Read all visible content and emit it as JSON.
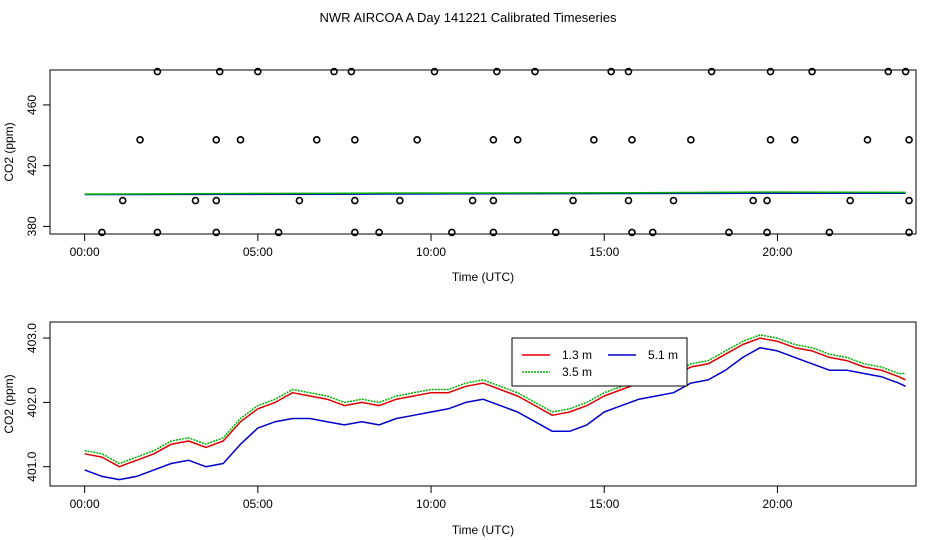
{
  "title": "NWR AIRCOA A  Day 141221  Calibrated Timeseries",
  "colors": {
    "s13": "#e00000",
    "s35": "#00b000",
    "s51": "#0000cc",
    "axis": "#000000"
  },
  "chart_data": [
    {
      "type": "scatter",
      "xlabel": "Time (UTC)",
      "ylabel": "CO2 (ppm)",
      "xlim": [
        -1.0,
        24.0
      ],
      "ylim": [
        375.0,
        483.0
      ],
      "x_ticks": [
        0,
        5,
        10,
        15,
        20
      ],
      "x_tick_labels": [
        "00:00",
        "05:00",
        "10:00",
        "15:00",
        "20:00"
      ],
      "y_ticks": [
        380,
        420,
        460
      ],
      "y_tick_labels": [
        "380",
        "420",
        "460"
      ],
      "series": [
        {
          "color": "#0000cc",
          "style": "line",
          "x": [
            0.0,
            4.0,
            8.0,
            12.0,
            16.0,
            20.0,
            23.7
          ],
          "y": [
            401.0,
            401.1,
            401.3,
            401.5,
            401.7,
            401.9,
            401.9
          ]
        },
        {
          "color": "#00b000",
          "style": "line",
          "x": [
            0.0,
            4.0,
            8.0,
            12.0,
            16.0,
            20.0,
            23.7
          ],
          "y": [
            401.3,
            401.6,
            401.9,
            402.0,
            402.2,
            402.6,
            402.4
          ]
        },
        {
          "color": "#000000",
          "style": "points",
          "x": [
            0.5,
            2.1,
            3.8,
            5.6,
            7.8,
            8.5,
            10.6,
            11.8,
            13.6,
            15.8,
            16.4,
            18.6,
            19.7,
            21.5,
            23.8
          ],
          "y": [
            376,
            376,
            376,
            376,
            376,
            376,
            376,
            376,
            376,
            376,
            376,
            376,
            376,
            376,
            376
          ]
        },
        {
          "color": "#000000",
          "style": "points",
          "x": [
            1.1,
            3.2,
            3.8,
            6.2,
            7.8,
            9.1,
            11.2,
            11.8,
            14.1,
            15.7,
            17.0,
            19.3,
            19.7,
            22.1,
            23.8
          ],
          "y": [
            397,
            397,
            397,
            397,
            397,
            397,
            397,
            397,
            397,
            397,
            397,
            397,
            397,
            397,
            397
          ]
        },
        {
          "color": "#000000",
          "style": "points",
          "x": [
            1.6,
            3.8,
            4.5,
            6.7,
            7.8,
            9.6,
            11.8,
            12.5,
            14.7,
            15.8,
            17.5,
            19.8,
            20.5,
            22.6,
            23.8
          ],
          "y": [
            437,
            437,
            437,
            437,
            437,
            437,
            437,
            437,
            437,
            437,
            437,
            437,
            437,
            437,
            437
          ]
        },
        {
          "color": "#000000",
          "style": "points",
          "x": [
            2.1,
            3.9,
            5.0,
            7.2,
            7.7,
            10.1,
            11.9,
            13.0,
            15.2,
            15.7,
            18.1,
            19.8,
            21.0,
            23.2,
            23.7
          ],
          "y": [
            482,
            482,
            482,
            482,
            482,
            482,
            482,
            482,
            482,
            482,
            482,
            482,
            482,
            482,
            482
          ]
        }
      ]
    },
    {
      "type": "line",
      "xlabel": "Time (UTC)",
      "ylabel": "CO2 (ppm)",
      "xlim": [
        -1.0,
        24.0
      ],
      "ylim": [
        400.7,
        403.25
      ],
      "x_ticks": [
        0,
        5,
        10,
        15,
        20
      ],
      "x_tick_labels": [
        "00:00",
        "05:00",
        "10:00",
        "15:00",
        "20:00"
      ],
      "y_ticks": [
        401.0,
        402.0,
        403.0
      ],
      "y_tick_labels": [
        "401.0",
        "402.0",
        "403.0"
      ],
      "legend": {
        "placement": "top-right"
      },
      "x": [
        0.0,
        0.5,
        1.0,
        1.5,
        2.0,
        2.5,
        3.0,
        3.5,
        4.0,
        4.5,
        5.0,
        5.5,
        6.0,
        6.5,
        7.0,
        7.5,
        8.0,
        8.5,
        9.0,
        9.5,
        10.0,
        10.5,
        11.0,
        11.5,
        12.0,
        12.5,
        13.0,
        13.5,
        14.0,
        14.5,
        15.0,
        15.5,
        16.0,
        16.5,
        17.0,
        17.5,
        18.0,
        18.5,
        19.0,
        19.5,
        20.0,
        20.5,
        21.0,
        21.5,
        22.0,
        22.5,
        23.0,
        23.5,
        23.7
      ],
      "series": [
        {
          "name": "1.3 m",
          "color": "#e00000",
          "values": [
            401.2,
            401.15,
            401.0,
            401.1,
            401.2,
            401.35,
            401.4,
            401.3,
            401.4,
            401.7,
            401.9,
            402.0,
            402.15,
            402.1,
            402.05,
            401.95,
            402.0,
            401.95,
            402.05,
            402.1,
            402.15,
            402.15,
            402.25,
            402.3,
            402.2,
            402.1,
            401.95,
            401.8,
            401.85,
            401.95,
            402.1,
            402.2,
            402.3,
            402.35,
            402.4,
            402.55,
            402.6,
            402.75,
            402.9,
            403.0,
            402.95,
            402.85,
            402.8,
            402.7,
            402.65,
            402.55,
            402.5,
            402.4,
            402.35
          ]
        },
        {
          "name": "3.5 m",
          "color": "#00b000",
          "values": [
            401.25,
            401.2,
            401.05,
            401.15,
            401.25,
            401.4,
            401.45,
            401.35,
            401.45,
            401.75,
            401.95,
            402.05,
            402.2,
            402.15,
            402.1,
            402.0,
            402.05,
            402.0,
            402.1,
            402.15,
            402.2,
            402.2,
            402.3,
            402.35,
            402.25,
            402.15,
            402.0,
            401.85,
            401.9,
            402.0,
            402.15,
            402.25,
            402.35,
            402.4,
            402.45,
            402.6,
            402.65,
            402.8,
            402.95,
            403.05,
            403.0,
            402.9,
            402.85,
            402.75,
            402.7,
            402.6,
            402.55,
            402.45,
            402.45
          ]
        },
        {
          "name": "5.1 m",
          "color": "#0000cc",
          "values": [
            400.95,
            400.85,
            400.8,
            400.85,
            400.95,
            401.05,
            401.1,
            401.0,
            401.05,
            401.35,
            401.6,
            401.7,
            401.75,
            401.75,
            401.7,
            401.65,
            401.7,
            401.65,
            401.75,
            401.8,
            401.85,
            401.9,
            402.0,
            402.05,
            401.95,
            401.85,
            401.7,
            401.55,
            401.55,
            401.65,
            401.85,
            401.95,
            402.05,
            402.1,
            402.15,
            402.3,
            402.35,
            402.5,
            402.7,
            402.85,
            402.8,
            402.7,
            402.6,
            402.5,
            402.5,
            402.45,
            402.4,
            402.3,
            402.25
          ]
        }
      ]
    }
  ]
}
